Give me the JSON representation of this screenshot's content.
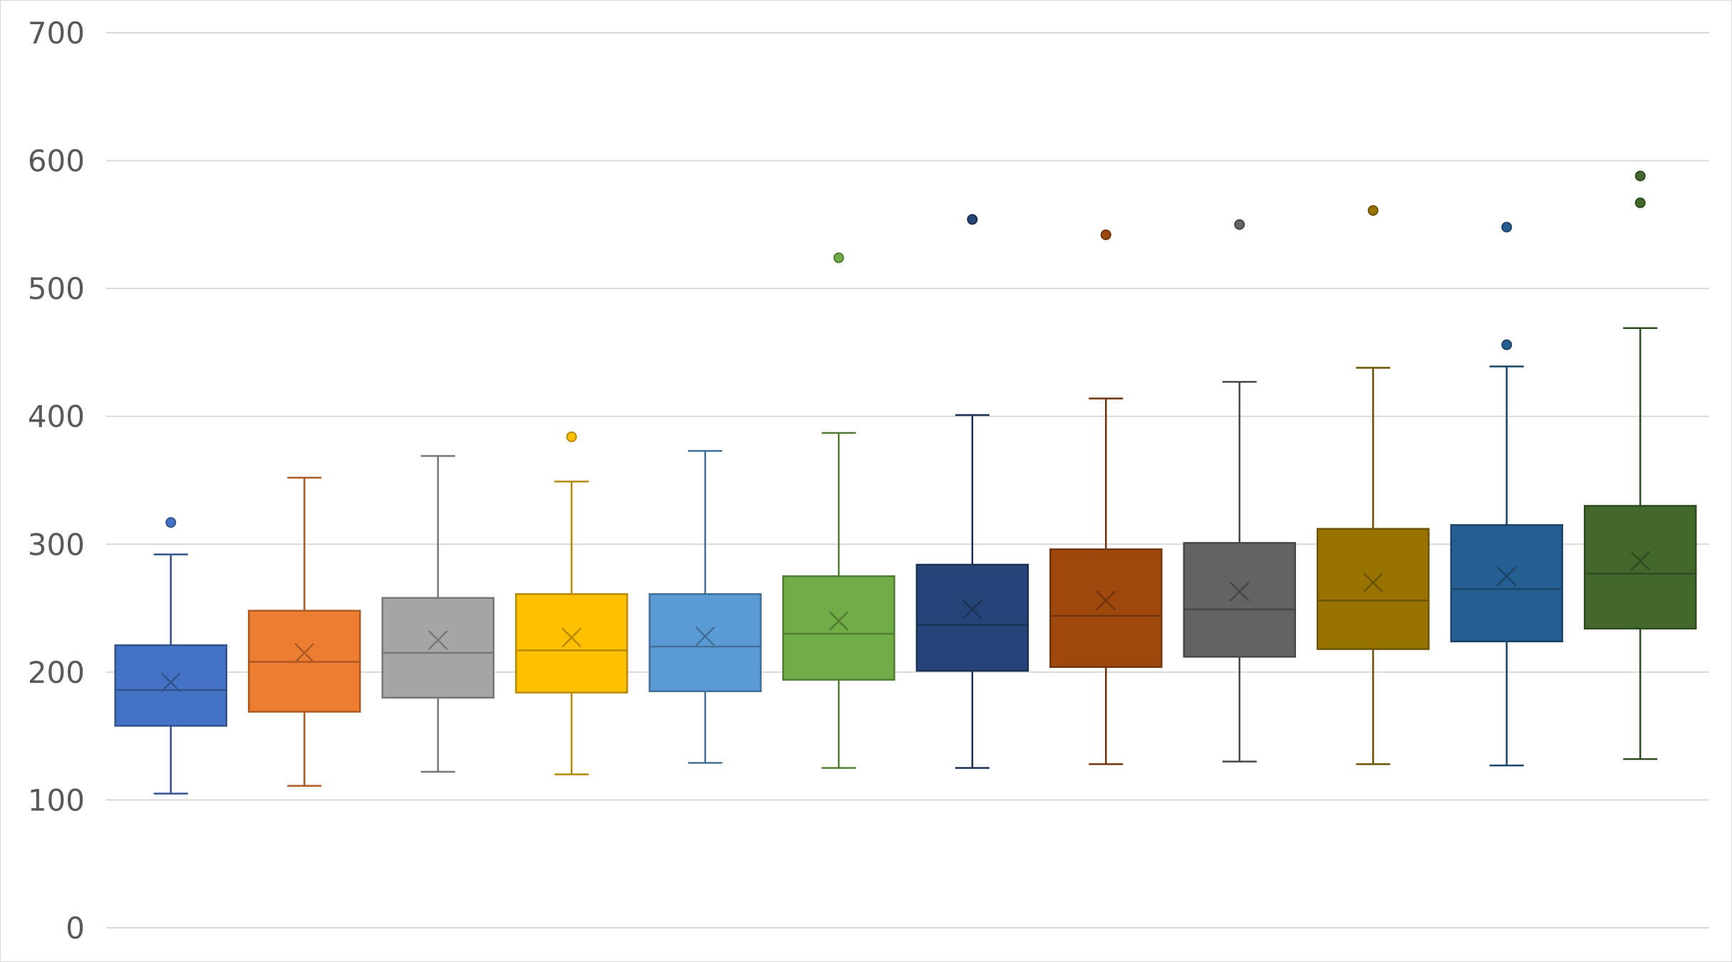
{
  "chart_data": {
    "type": "box",
    "title": "",
    "xlabel": "",
    "ylabel": "",
    "ylim": [
      0,
      700
    ],
    "yticks": [
      0,
      100,
      200,
      300,
      400,
      500,
      600,
      700
    ],
    "ytick_labels": [
      "0",
      "100",
      "200",
      "300",
      "400",
      "500",
      "600",
      "700"
    ],
    "grid": true,
    "legend": "none",
    "series": [
      {
        "color": "#4472C4",
        "min": 105,
        "q1": 158,
        "median": 186,
        "q3": 221,
        "max": 292,
        "mean": 192,
        "outliers": [
          317
        ]
      },
      {
        "color": "#ED7D31",
        "min": 111,
        "q1": 169,
        "median": 208,
        "q3": 248,
        "max": 352,
        "mean": 215,
        "outliers": []
      },
      {
        "color": "#A5A5A5",
        "min": 122,
        "q1": 180,
        "median": 215,
        "q3": 258,
        "max": 369,
        "mean": 225,
        "outliers": []
      },
      {
        "color": "#FFC000",
        "min": 120,
        "q1": 184,
        "median": 217,
        "q3": 261,
        "max": 349,
        "mean": 227,
        "outliers": [
          384
        ]
      },
      {
        "color": "#5B9BD5",
        "min": 129,
        "q1": 185,
        "median": 220,
        "q3": 261,
        "max": 373,
        "mean": 228,
        "outliers": []
      },
      {
        "color": "#70AD47",
        "min": 125,
        "q1": 194,
        "median": 230,
        "q3": 275,
        "max": 387,
        "mean": 240,
        "outliers": [
          524
        ]
      },
      {
        "color": "#264478",
        "min": 125,
        "q1": 201,
        "median": 237,
        "q3": 284,
        "max": 401,
        "mean": 249,
        "outliers": [
          554
        ]
      },
      {
        "color": "#9E480E",
        "min": 128,
        "q1": 204,
        "median": 244,
        "q3": 296,
        "max": 414,
        "mean": 256,
        "outliers": [
          542
        ]
      },
      {
        "color": "#636363",
        "min": 130,
        "q1": 212,
        "median": 249,
        "q3": 301,
        "max": 427,
        "mean": 263,
        "outliers": [
          550
        ]
      },
      {
        "color": "#997300",
        "min": 128,
        "q1": 218,
        "median": 256,
        "q3": 312,
        "max": 438,
        "mean": 270,
        "outliers": [
          561
        ]
      },
      {
        "color": "#255E91",
        "min": 127,
        "q1": 224,
        "median": 265,
        "q3": 315,
        "max": 439,
        "mean": 275,
        "outliers": [
          456,
          548
        ]
      },
      {
        "color": "#43682B",
        "min": 132,
        "q1": 234,
        "median": 277,
        "q3": 330,
        "max": 469,
        "mean": 287,
        "outliers": [
          567,
          588
        ]
      }
    ]
  }
}
